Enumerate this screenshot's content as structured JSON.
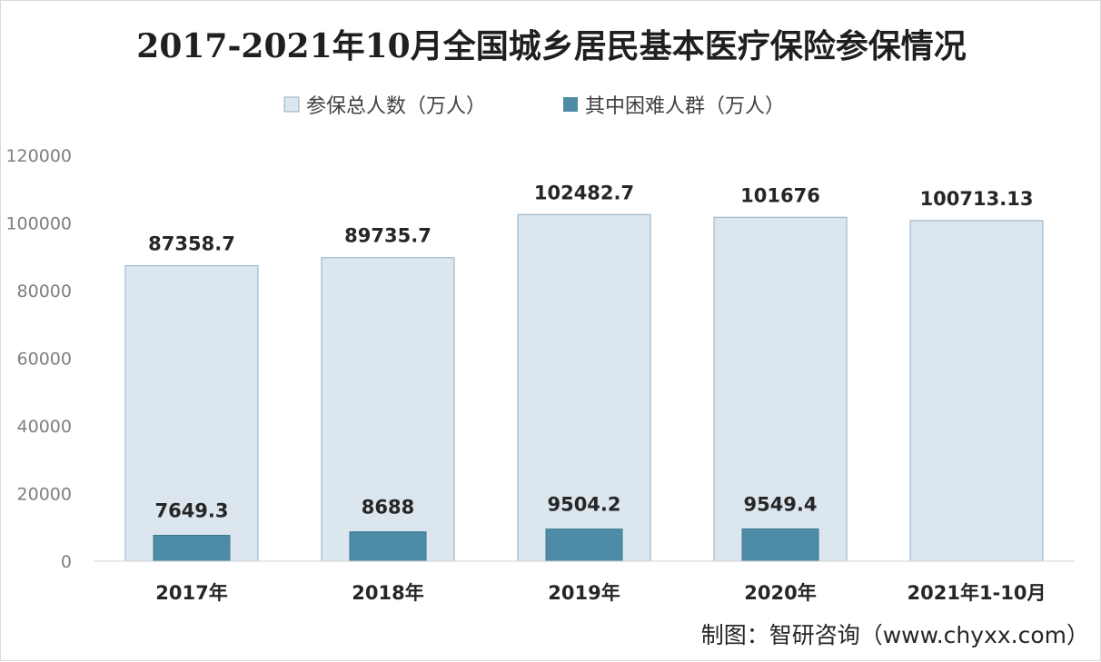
{
  "chart_data": {
    "type": "bar",
    "title": "2017-2021年10月全国城乡居民基本医疗保险参保情况",
    "categories": [
      "2017年",
      "2018年",
      "2019年",
      "2020年",
      "2021年1-10月"
    ],
    "series": [
      {
        "name": "参保总人数（万人）",
        "values": [
          87358.7,
          89735.7,
          102482.7,
          101676,
          100713.13
        ],
        "labels": [
          "87358.7",
          "89735.7",
          "102482.7",
          "101676",
          "100713.13"
        ],
        "color": "#dce6ee",
        "border": "#8faec4"
      },
      {
        "name": "其中困难人群（万人）",
        "values": [
          7649.3,
          8688,
          9504.2,
          9549.4,
          null
        ],
        "labels": [
          "7649.3",
          "8688",
          "9504.2",
          "9549.4",
          ""
        ],
        "color": "#4e8ba6",
        "border": "#3f7892"
      }
    ],
    "ylim": [
      0,
      120000
    ],
    "yticks": [
      "0",
      "20000",
      "40000",
      "60000",
      "80000",
      "100000",
      "120000"
    ],
    "grid": false,
    "legend_position": "top-center",
    "source": "制图：智研咨询（www.chyxx.com）"
  }
}
